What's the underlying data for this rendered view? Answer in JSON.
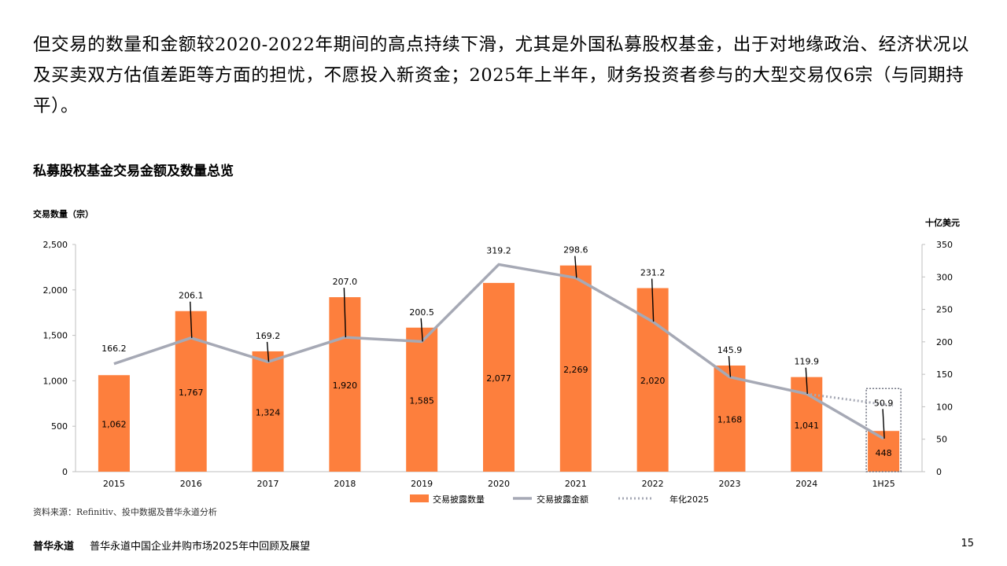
{
  "page": {
    "headline": "但交易的数量和金额较2020-2022年期间的高点持续下滑，尤其是外国私募股权基金，出于对地缘政治、经济状况以及买卖双方估值差距等方面的担忧，不愿投入新资金；2025年上半年，财务投资者参与的大型交易仅6宗（与同期持平）。",
    "chart_title": "私募股权基金交易金额及数量总览",
    "source": "资料来源：Refinitiv、投中数据及普华永道分析",
    "footer_brand": "普华永道",
    "footer_report": "普华永道中国企业并购市场2025年中回顾及展望",
    "page_number": "15"
  },
  "colors": {
    "bar": "#FD7F3D",
    "line": "#A6A9B5",
    "annualized": "#A6A9B5",
    "box": "#6E7280",
    "axis": "#BFBFBF",
    "text": "#000000"
  },
  "chart_data": {
    "type": "bar",
    "categories": [
      "2015",
      "2016",
      "2017",
      "2018",
      "2019",
      "2020",
      "2021",
      "2022",
      "2023",
      "2024",
      "1H25"
    ],
    "y_left": {
      "label": "交易数量（宗）",
      "ylim": [
        0,
        2500
      ],
      "ticks": [
        "0",
        "500",
        "1,000",
        "1,500",
        "2,000",
        "2,500"
      ],
      "tick_values": [
        0,
        500,
        1000,
        1500,
        2000,
        2500
      ]
    },
    "y_right": {
      "label": "十亿美元",
      "ylim": [
        0,
        350
      ],
      "ticks": [
        "0",
        "50",
        "100",
        "150",
        "200",
        "250",
        "300",
        "350"
      ],
      "tick_values": [
        0,
        50,
        100,
        150,
        200,
        250,
        300,
        350
      ]
    },
    "series": [
      {
        "name": "交易披露数量",
        "type": "bar",
        "axis": "left",
        "values": [
          1062,
          1767,
          1324,
          1920,
          1585,
          2077,
          2269,
          2020,
          1168,
          1041,
          448
        ],
        "labels": [
          "1,062",
          "1,767",
          "1,324",
          "1,920",
          "1,585",
          "2,077",
          "2,269",
          "2,020",
          "1,168",
          "1,041",
          "448"
        ]
      },
      {
        "name": "交易披露金额",
        "type": "line",
        "axis": "right",
        "values": [
          166.2,
          206.1,
          169.2,
          207.0,
          200.5,
          319.2,
          298.6,
          231.2,
          145.9,
          119.9,
          50.9
        ],
        "labels": [
          "166.2",
          "206.1",
          "169.2",
          "207.0",
          "200.5",
          "319.2",
          "298.6",
          "231.2",
          "145.9",
          "119.9",
          "50.9"
        ]
      },
      {
        "name": "年化2025",
        "type": "dotted-line",
        "axis": "right",
        "points": [
          [
            "2024",
            119.9
          ],
          [
            "1H25",
            101.8
          ]
        ]
      }
    ],
    "legend_position": "bottom-right",
    "grid": false
  }
}
